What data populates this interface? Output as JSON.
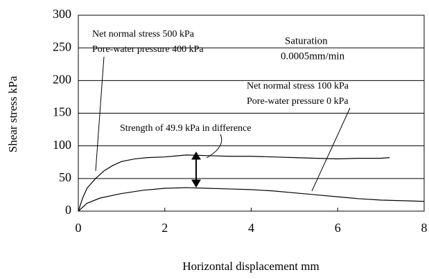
{
  "chart_data": {
    "type": "line",
    "xlabel": "Horizontal displacement mm",
    "ylabel": "Shear stress kPa",
    "xlim": [
      0,
      8
    ],
    "xticks": [
      0,
      2,
      4,
      6,
      8
    ],
    "ylim": [
      0,
      300
    ],
    "yticks": [
      0,
      50,
      100,
      150,
      200,
      250,
      300
    ],
    "grid": true,
    "series": [
      {
        "color": "#000000",
        "x": [
          0,
          0.1,
          0.2,
          0.4,
          0.6,
          0.8,
          1.0,
          1.3,
          1.6,
          2.0,
          2.5,
          3.0,
          3.5,
          4.0,
          4.5,
          5.0,
          5.5,
          6.0,
          6.5,
          7.0,
          7.2
        ],
        "values": [
          0,
          20,
          35,
          50,
          62,
          70,
          76,
          80,
          82,
          83,
          86,
          85,
          84,
          84,
          83,
          82,
          81,
          80,
          81,
          81,
          82
        ]
      },
      {
        "color": "#000000",
        "x": [
          0,
          0.2,
          0.5,
          1.0,
          1.5,
          2.0,
          2.5,
          3.0,
          3.5,
          4.0,
          4.5,
          5.0,
          5.5,
          6.0,
          6.5,
          7.0,
          7.5,
          8.0
        ],
        "values": [
          0,
          12,
          20,
          27,
          32,
          35,
          36,
          35,
          34,
          33,
          31,
          28,
          25,
          22,
          19,
          17,
          16,
          15
        ]
      }
    ],
    "annotations": [
      "Net normal stress 500 kPa",
      "Pore-water pressure 400 kPa",
      "Saturation",
      "0.0005mm/min",
      "Net normal stress 100 kPa",
      "Pore-water pressure 0 kPa",
      "Strength of 49.9 kPa in difference"
    ]
  }
}
